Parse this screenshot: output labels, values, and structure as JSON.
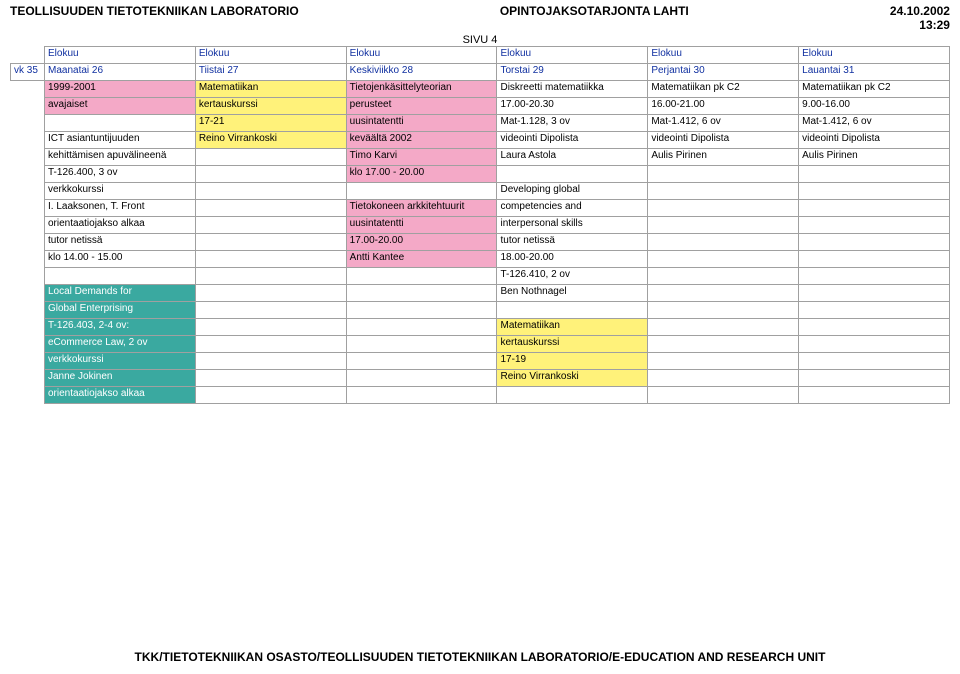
{
  "header": {
    "left": "TEOLLISUUDEN TIETOTEKNIIKAN LABORATORIO",
    "center": "OPINTOJAKSOTARJONTA LAHTI",
    "date": "24.10.2002",
    "time": "13:29",
    "page": "SIVU 4"
  },
  "week_label": "vk 35",
  "month": "Elokuu",
  "days": {
    "mon": "Maanatai 26",
    "tue": "Tiistai 27",
    "wed": "Keskiviikko 28",
    "thu": "Torstai 29",
    "fri": "Perjantai 30",
    "sat": "Lauantai 31"
  },
  "rows": [
    {
      "mon": "1999-2001",
      "tue": "Matematiikan",
      "wed": "Tietojenkäsittelyteorian",
      "thu": "Diskreetti matematiikka",
      "fri": "Matematiikan pk C2",
      "sat": "Matematiikan pk C2"
    },
    {
      "mon": "avajaiset",
      "tue": "kertauskurssi",
      "wed": "perusteet",
      "thu": "17.00-20.30",
      "fri": "16.00-21.00",
      "sat": "9.00-16.00"
    },
    {
      "mon": "",
      "tue": "17-21",
      "wed": "uusintatentti",
      "thu": "Mat-1.128, 3 ov",
      "fri": "Mat-1.412, 6 ov",
      "sat": "Mat-1.412, 6 ov"
    },
    {
      "mon": "ICT asiantuntijuuden",
      "tue": "Reino Virrankoski",
      "wed": "keväältä 2002",
      "thu": "videointi Dipolista",
      "fri": "videointi Dipolista",
      "sat": "videointi Dipolista"
    },
    {
      "mon": "kehittämisen apuvälineenä",
      "tue": "",
      "wed": "Timo Karvi",
      "thu": "Laura Astola",
      "fri": "Aulis Pirinen",
      "sat": "Aulis Pirinen"
    },
    {
      "mon": "T-126.400, 3 ov",
      "tue": "",
      "wed": "klo 17.00 - 20.00",
      "thu": "",
      "fri": "",
      "sat": ""
    },
    {
      "mon": "verkkokurssi",
      "tue": "",
      "wed": "",
      "thu": "Developing global",
      "fri": "",
      "sat": ""
    },
    {
      "mon": "I. Laaksonen, T. Front",
      "tue": "",
      "wed": "Tietokoneen arkkitehtuurit",
      "thu": "competencies and",
      "fri": "",
      "sat": ""
    },
    {
      "mon": "orientaatiojakso alkaa",
      "tue": "",
      "wed": "uusintatentti",
      "thu": "interpersonal skills",
      "fri": "",
      "sat": ""
    },
    {
      "mon": "tutor netissä",
      "tue": "",
      "wed": "17.00-20.00",
      "thu": "tutor netissä",
      "fri": "",
      "sat": ""
    },
    {
      "mon": "klo 14.00 - 15.00",
      "tue": "",
      "wed": "Antti Kantee",
      "thu": "18.00-20.00",
      "fri": "",
      "sat": ""
    },
    {
      "mon": "",
      "tue": "",
      "wed": "",
      "thu": "T-126.410, 2 ov",
      "fri": "",
      "sat": ""
    },
    {
      "mon": "Local Demands for",
      "tue": "",
      "wed": "",
      "thu": "Ben Nothnagel",
      "fri": "",
      "sat": ""
    },
    {
      "mon": "Global Enterprising",
      "tue": "",
      "wed": "",
      "thu": "",
      "fri": "",
      "sat": ""
    },
    {
      "mon": "T-126.403, 2-4 ov:",
      "tue": "",
      "wed": "",
      "thu": "Matematiikan",
      "fri": "",
      "sat": ""
    },
    {
      "mon": "eCommerce Law, 2 ov",
      "tue": "",
      "wed": "",
      "thu": "kertauskurssi",
      "fri": "",
      "sat": ""
    },
    {
      "mon": "verkkokurssi",
      "tue": "",
      "wed": "",
      "thu": "17-19",
      "fri": "",
      "sat": ""
    },
    {
      "mon": "Janne Jokinen",
      "tue": "",
      "wed": "",
      "thu": "Reino Virrankoski",
      "fri": "",
      "sat": ""
    },
    {
      "mon": "orientaatiojakso alkaa",
      "tue": "",
      "wed": "",
      "thu": "",
      "fri": "",
      "sat": ""
    }
  ],
  "cell_styles": {
    "0": {
      "mon": "pink",
      "tue": "yellow",
      "wed": "pink"
    },
    "1": {
      "mon": "pink",
      "tue": "yellow",
      "wed": "pink"
    },
    "2": {
      "tue": "yellow",
      "wed": "pink"
    },
    "3": {
      "tue": "yellow",
      "wed": "pink"
    },
    "4": {
      "wed": "pink"
    },
    "5": {
      "wed": "pink"
    },
    "7": {
      "wed": "pink"
    },
    "8": {
      "wed": "pink"
    },
    "9": {
      "mon": "tutor",
      "wed": "pink",
      "thu": "tutor"
    },
    "10": {
      "wed": "pink"
    },
    "12": {
      "mon": "teal"
    },
    "13": {
      "mon": "teal"
    },
    "14": {
      "mon": "teal",
      "thu": "yellow"
    },
    "15": {
      "mon": "teal",
      "thu": "yellow"
    },
    "16": {
      "mon": "teal",
      "thu": "yellow"
    },
    "17": {
      "mon": "teal",
      "thu": "yellow"
    },
    "18": {
      "mon": "teal"
    }
  },
  "footer": "TKK/TIETOTEKNIIKAN OSASTO/TEOLLISUUDEN TIETOTEKNIIKAN LABORATORIO/E-EDUCATION AND RESEARCH UNIT"
}
